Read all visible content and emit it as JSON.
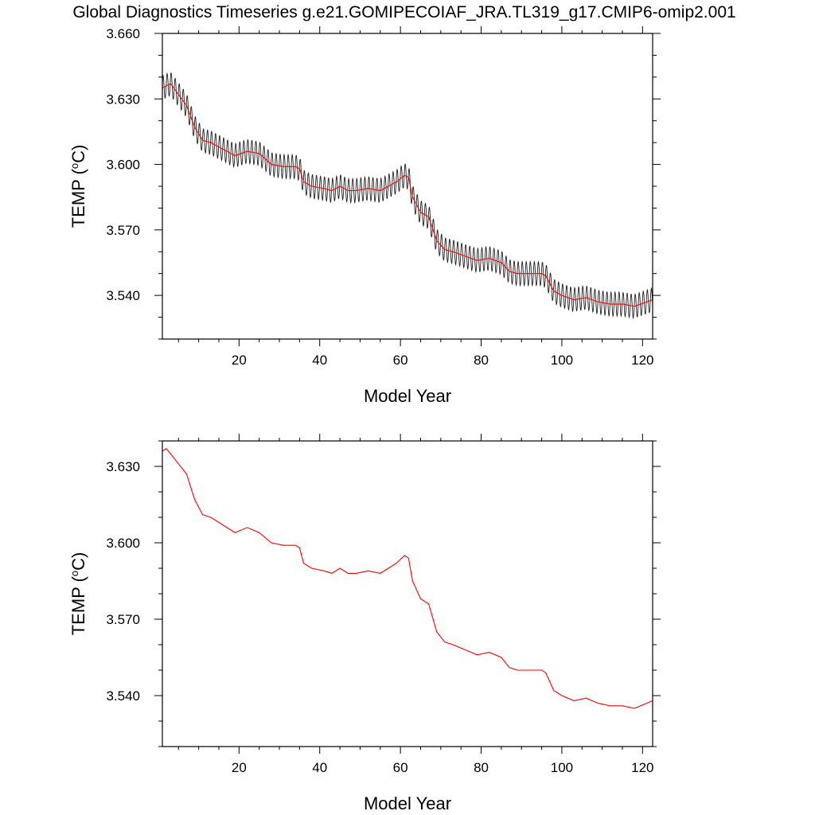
{
  "figure": {
    "title": "Global Diagnostics Timeseries g.e21.GOMIPECOIAF_JRA.TL319_g17.CMIP6-omip2.001"
  },
  "colors": {
    "raw": "#222222",
    "smoothed": "#ff0000",
    "axes": "#000000",
    "background": "#ffffff"
  },
  "chart_data": [
    {
      "type": "line",
      "title": "Global Diagnostics Timeseries g.e21.GOMIPECOIAF_JRA.TL319_g17.CMIP6-omip2.001",
      "xlabel": "Model Year",
      "ylabel": "TEMP (",
      "ylabel_unit": "C)",
      "ylabel_degree": "o",
      "xlim": [
        1,
        122.5
      ],
      "ylim": [
        3.52,
        3.66
      ],
      "x_ticks": [
        20,
        40,
        60,
        80,
        100,
        120
      ],
      "y_ticks": [
        3.54,
        3.57,
        3.6,
        3.63,
        3.66
      ],
      "y_tick_labels": [
        "3.540",
        "3.570",
        "3.600",
        "3.630",
        "3.660"
      ],
      "grid": false,
      "seasonal_amplitude": 0.0055,
      "series": [
        {
          "id": "monthly",
          "color": "#222222",
          "x": [
            1,
            122.5
          ],
          "y": [
            3.634,
            3.536
          ]
        },
        {
          "id": "annual-mean",
          "color": "#ff0000",
          "x": [
            1,
            3,
            5,
            7,
            9,
            11,
            13,
            16,
            19,
            22,
            25,
            28,
            31,
            34,
            35,
            36,
            38,
            41,
            43,
            45,
            47,
            49,
            52,
            55,
            57,
            59,
            61,
            62,
            63,
            65,
            67,
            69,
            71,
            73,
            76,
            79,
            82,
            85,
            87,
            89,
            92,
            95,
            96,
            98,
            100,
            103,
            106,
            109,
            112,
            115,
            118,
            121,
            122.5
          ],
          "y": [
            3.635,
            3.637,
            3.632,
            3.627,
            3.617,
            3.611,
            3.61,
            3.607,
            3.604,
            3.606,
            3.605,
            3.6,
            3.599,
            3.599,
            3.598,
            3.592,
            3.59,
            3.589,
            3.588,
            3.59,
            3.588,
            3.588,
            3.589,
            3.588,
            3.59,
            3.592,
            3.595,
            3.594,
            3.585,
            3.578,
            3.576,
            3.565,
            3.561,
            3.56,
            3.558,
            3.556,
            3.557,
            3.555,
            3.551,
            3.55,
            3.55,
            3.55,
            3.549,
            3.542,
            3.54,
            3.538,
            3.539,
            3.537,
            3.536,
            3.536,
            3.535,
            3.537,
            3.538
          ]
        }
      ]
    },
    {
      "type": "line",
      "xlabel": "Model Year",
      "ylabel": "TEMP (",
      "ylabel_unit": "C)",
      "ylabel_degree": "o",
      "xlim": [
        1,
        122.5
      ],
      "ylim": [
        3.52,
        3.64
      ],
      "x_ticks": [
        20,
        40,
        60,
        80,
        100,
        120
      ],
      "y_ticks": [
        3.54,
        3.57,
        3.6,
        3.63
      ],
      "y_tick_labels": [
        "3.540",
        "3.570",
        "3.600",
        "3.630"
      ],
      "grid": false,
      "series": [
        {
          "id": "annual-mean",
          "color": "#ff0000",
          "x": [
            1,
            2,
            3,
            5,
            7,
            9,
            11,
            13,
            16,
            19,
            22,
            25,
            28,
            31,
            34,
            35,
            36,
            38,
            41,
            43,
            45,
            47,
            49,
            52,
            55,
            57,
            59,
            61,
            62,
            63,
            65,
            67,
            69,
            71,
            73,
            76,
            79,
            82,
            85,
            87,
            89,
            92,
            95,
            96,
            98,
            100,
            103,
            106,
            109,
            112,
            115,
            118,
            121,
            122.5
          ],
          "y": [
            3.636,
            3.637,
            3.635,
            3.631,
            3.627,
            3.617,
            3.611,
            3.61,
            3.607,
            3.604,
            3.606,
            3.604,
            3.6,
            3.599,
            3.599,
            3.598,
            3.592,
            3.59,
            3.589,
            3.588,
            3.59,
            3.588,
            3.588,
            3.589,
            3.588,
            3.59,
            3.592,
            3.595,
            3.594,
            3.585,
            3.578,
            3.576,
            3.565,
            3.561,
            3.56,
            3.558,
            3.556,
            3.557,
            3.555,
            3.551,
            3.55,
            3.55,
            3.55,
            3.549,
            3.542,
            3.54,
            3.538,
            3.539,
            3.537,
            3.536,
            3.536,
            3.535,
            3.537,
            3.538
          ]
        }
      ]
    }
  ]
}
